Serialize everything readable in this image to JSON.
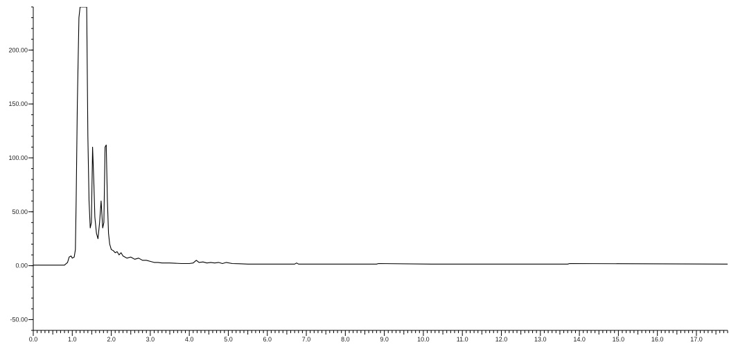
{
  "chart_data": {
    "type": "line",
    "title": "",
    "xlabel": "",
    "ylabel": "",
    "xlim": [
      0.0,
      17.8
    ],
    "ylim": [
      -60.0,
      240.0
    ],
    "grid": false,
    "legend": "none",
    "x_ticks": [
      {
        "value": 0,
        "label": "0.0"
      },
      {
        "value": 1,
        "label": "1.0"
      },
      {
        "value": 2,
        "label": "2.0"
      },
      {
        "value": 3,
        "label": "3.0"
      },
      {
        "value": 4,
        "label": "4.0"
      },
      {
        "value": 5,
        "label": "5.0"
      },
      {
        "value": 6,
        "label": "6.0"
      },
      {
        "value": 7,
        "label": "7.0"
      },
      {
        "value": 8,
        "label": "8.0"
      },
      {
        "value": 9,
        "label": "9.0"
      },
      {
        "value": 10,
        "label": "10.0"
      },
      {
        "value": 11,
        "label": "11.0"
      },
      {
        "value": 12,
        "label": "12.0"
      },
      {
        "value": 13,
        "label": "13.0"
      },
      {
        "value": 14,
        "label": "14.0"
      },
      {
        "value": 15,
        "label": "15.0"
      },
      {
        "value": 16,
        "label": "16.0"
      },
      {
        "value": 17,
        "label": "17.0"
      }
    ],
    "y_ticks": [
      {
        "value": 200,
        "label": "200.00"
      },
      {
        "value": 150,
        "label": "150.00"
      },
      {
        "value": 100,
        "label": "100.00"
      },
      {
        "value": 50,
        "label": "50.00"
      },
      {
        "value": 0,
        "label": "0.00"
      },
      {
        "value": -50,
        "label": "-50.00"
      }
    ],
    "series": [
      {
        "color": "#000000",
        "x": [
          0.0,
          0.8,
          0.88,
          0.92,
          0.97,
          1.0,
          1.05,
          1.08,
          1.1,
          1.13,
          1.17,
          1.2,
          1.24,
          1.37,
          1.4,
          1.43,
          1.46,
          1.49,
          1.52,
          1.55,
          1.58,
          1.62,
          1.66,
          1.7,
          1.74,
          1.78,
          1.81,
          1.84,
          1.87,
          1.9,
          1.93,
          1.96,
          2.0,
          2.05,
          2.1,
          2.15,
          2.2,
          2.25,
          2.3,
          2.35,
          2.4,
          2.5,
          2.6,
          2.7,
          2.8,
          2.9,
          3.0,
          3.1,
          3.2,
          3.3,
          3.5,
          3.8,
          4.0,
          4.1,
          4.18,
          4.25,
          4.35,
          4.45,
          4.55,
          4.65,
          4.75,
          4.85,
          4.95,
          5.1,
          5.3,
          5.5,
          5.8,
          6.0,
          6.5,
          6.7,
          6.75,
          6.8,
          7.5,
          8.8,
          8.85,
          10.2,
          12.0,
          13.7,
          13.75,
          17.8
        ],
        "y": [
          0.5,
          0.5,
          3,
          8,
          9,
          7,
          8,
          15,
          60,
          150,
          230,
          240,
          240,
          240,
          120,
          60,
          35,
          40,
          110,
          80,
          45,
          30,
          25,
          40,
          60,
          35,
          40,
          110,
          112,
          60,
          30,
          20,
          15,
          14,
          12,
          13,
          10,
          12,
          9,
          8,
          7,
          8,
          6,
          7,
          5,
          5,
          4,
          3,
          3,
          2.5,
          2.5,
          2,
          2,
          2.5,
          5,
          3,
          3.5,
          2.5,
          3,
          2.5,
          3,
          2,
          3,
          2,
          1.8,
          1.5,
          1.5,
          1.5,
          1.5,
          1.5,
          2.5,
          1.5,
          1.5,
          1.5,
          2,
          1.5,
          1.5,
          1.5,
          2,
          1.5
        ]
      }
    ]
  }
}
